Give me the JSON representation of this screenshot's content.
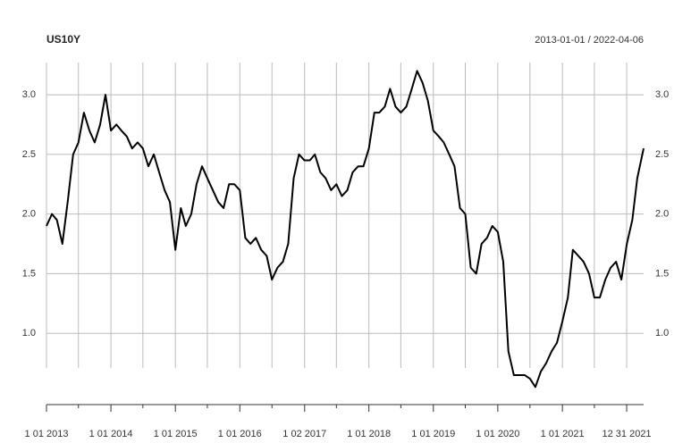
{
  "chart_data": {
    "type": "line",
    "title": "US10Y",
    "subtitle": "2013-01-01 / 2022-04-06",
    "x": [
      "2013-01-01",
      "2013-02-01",
      "2013-03-01",
      "2013-04-01",
      "2013-05-01",
      "2013-06-01",
      "2013-07-01",
      "2013-08-01",
      "2013-09-01",
      "2013-10-01",
      "2013-11-01",
      "2013-12-01",
      "2014-01-01",
      "2014-02-01",
      "2014-03-01",
      "2014-04-01",
      "2014-05-01",
      "2014-06-01",
      "2014-07-01",
      "2014-08-01",
      "2014-09-01",
      "2014-10-01",
      "2014-11-01",
      "2014-12-01",
      "2015-01-01",
      "2015-02-01",
      "2015-03-01",
      "2015-04-01",
      "2015-05-01",
      "2015-06-01",
      "2015-07-01",
      "2015-08-01",
      "2015-09-01",
      "2015-10-01",
      "2015-11-01",
      "2015-12-01",
      "2016-01-01",
      "2016-02-01",
      "2016-03-01",
      "2016-04-01",
      "2016-05-01",
      "2016-06-01",
      "2016-07-01",
      "2016-08-01",
      "2016-09-01",
      "2016-10-01",
      "2016-11-01",
      "2016-12-01",
      "2017-01-01",
      "2017-02-01",
      "2017-03-01",
      "2017-04-01",
      "2017-05-01",
      "2017-06-01",
      "2017-07-01",
      "2017-08-01",
      "2017-09-01",
      "2017-10-01",
      "2017-11-01",
      "2017-12-01",
      "2018-01-01",
      "2018-02-01",
      "2018-03-01",
      "2018-04-01",
      "2018-05-01",
      "2018-06-01",
      "2018-07-01",
      "2018-08-01",
      "2018-09-01",
      "2018-10-01",
      "2018-11-01",
      "2018-12-01",
      "2019-01-01",
      "2019-02-01",
      "2019-03-01",
      "2019-04-01",
      "2019-05-01",
      "2019-06-01",
      "2019-07-01",
      "2019-08-01",
      "2019-09-01",
      "2019-10-01",
      "2019-11-01",
      "2019-12-01",
      "2020-01-01",
      "2020-02-01",
      "2020-03-01",
      "2020-04-01",
      "2020-05-01",
      "2020-06-01",
      "2020-07-01",
      "2020-08-01",
      "2020-09-01",
      "2020-10-01",
      "2020-11-01",
      "2020-12-01",
      "2021-01-01",
      "2021-02-01",
      "2021-03-01",
      "2021-04-01",
      "2021-05-01",
      "2021-06-01",
      "2021-07-01",
      "2021-08-01",
      "2021-09-01",
      "2021-10-01",
      "2021-11-01",
      "2021-12-01",
      "2022-01-01",
      "2022-02-01",
      "2022-03-01",
      "2022-04-06"
    ],
    "series": [
      {
        "name": "US10Y",
        "color": "#000000",
        "values": [
          1.9,
          2.0,
          1.95,
          1.75,
          2.1,
          2.5,
          2.6,
          2.85,
          2.7,
          2.6,
          2.75,
          3.0,
          2.7,
          2.75,
          2.7,
          2.65,
          2.55,
          2.6,
          2.55,
          2.4,
          2.5,
          2.35,
          2.2,
          2.1,
          1.7,
          2.05,
          1.9,
          2.0,
          2.25,
          2.4,
          2.3,
          2.2,
          2.1,
          2.05,
          2.25,
          2.25,
          2.2,
          1.8,
          1.75,
          1.8,
          1.7,
          1.65,
          1.45,
          1.55,
          1.6,
          1.75,
          2.3,
          2.5,
          2.45,
          2.45,
          2.5,
          2.35,
          2.3,
          2.2,
          2.25,
          2.15,
          2.2,
          2.35,
          2.4,
          2.4,
          2.55,
          2.85,
          2.85,
          2.9,
          3.05,
          2.9,
          2.85,
          2.9,
          3.05,
          3.2,
          3.1,
          2.95,
          2.7,
          2.65,
          2.6,
          2.5,
          2.4,
          2.05,
          2.0,
          1.55,
          1.5,
          1.75,
          1.8,
          1.9,
          1.85,
          1.6,
          0.85,
          0.65,
          0.65,
          0.65,
          0.62,
          0.55,
          0.68,
          0.75,
          0.85,
          0.92,
          1.1,
          1.3,
          1.7,
          1.65,
          1.6,
          1.5,
          1.3,
          1.3,
          1.45,
          1.55,
          1.6,
          1.45,
          1.75,
          1.95,
          2.3,
          2.55
        ]
      }
    ],
    "xlim": [
      "2013-01-01",
      "2022-04-06"
    ],
    "xticks": [
      {
        "value": "2013-01-01",
        "label": "1 01 2013"
      },
      {
        "value": "2013-07-01",
        "label": null
      },
      {
        "value": "2014-01-01",
        "label": "1 01 2014"
      },
      {
        "value": "2014-07-01",
        "label": null
      },
      {
        "value": "2015-01-01",
        "label": "1 01 2015"
      },
      {
        "value": "2015-07-01",
        "label": null
      },
      {
        "value": "2016-01-01",
        "label": "1 01 2016"
      },
      {
        "value": "2016-07-01",
        "label": null
      },
      {
        "value": "2017-01-02",
        "label": "1 02 2017"
      },
      {
        "value": "2017-07-01",
        "label": null
      },
      {
        "value": "2018-01-01",
        "label": "1 01 2018"
      },
      {
        "value": "2018-07-01",
        "label": null
      },
      {
        "value": "2019-01-01",
        "label": "1 01 2019"
      },
      {
        "value": "2019-07-01",
        "label": null
      },
      {
        "value": "2020-01-01",
        "label": "1 01 2020"
      },
      {
        "value": "2020-07-01",
        "label": null
      },
      {
        "value": "2021-01-01",
        "label": "1 01 2021"
      },
      {
        "value": "2021-07-01",
        "label": null
      },
      {
        "value": "2021-12-31",
        "label": "12 31 2021"
      }
    ],
    "ylim": [
      0.5,
      3.27
    ],
    "yticks": [
      {
        "value": 1,
        "label": "1.0"
      },
      {
        "value": 1.5,
        "label": "1.5"
      },
      {
        "value": 2,
        "label": "2.0"
      },
      {
        "value": 2.5,
        "label": "2.5"
      },
      {
        "value": 3,
        "label": "3.0"
      }
    ],
    "grid": true
  }
}
